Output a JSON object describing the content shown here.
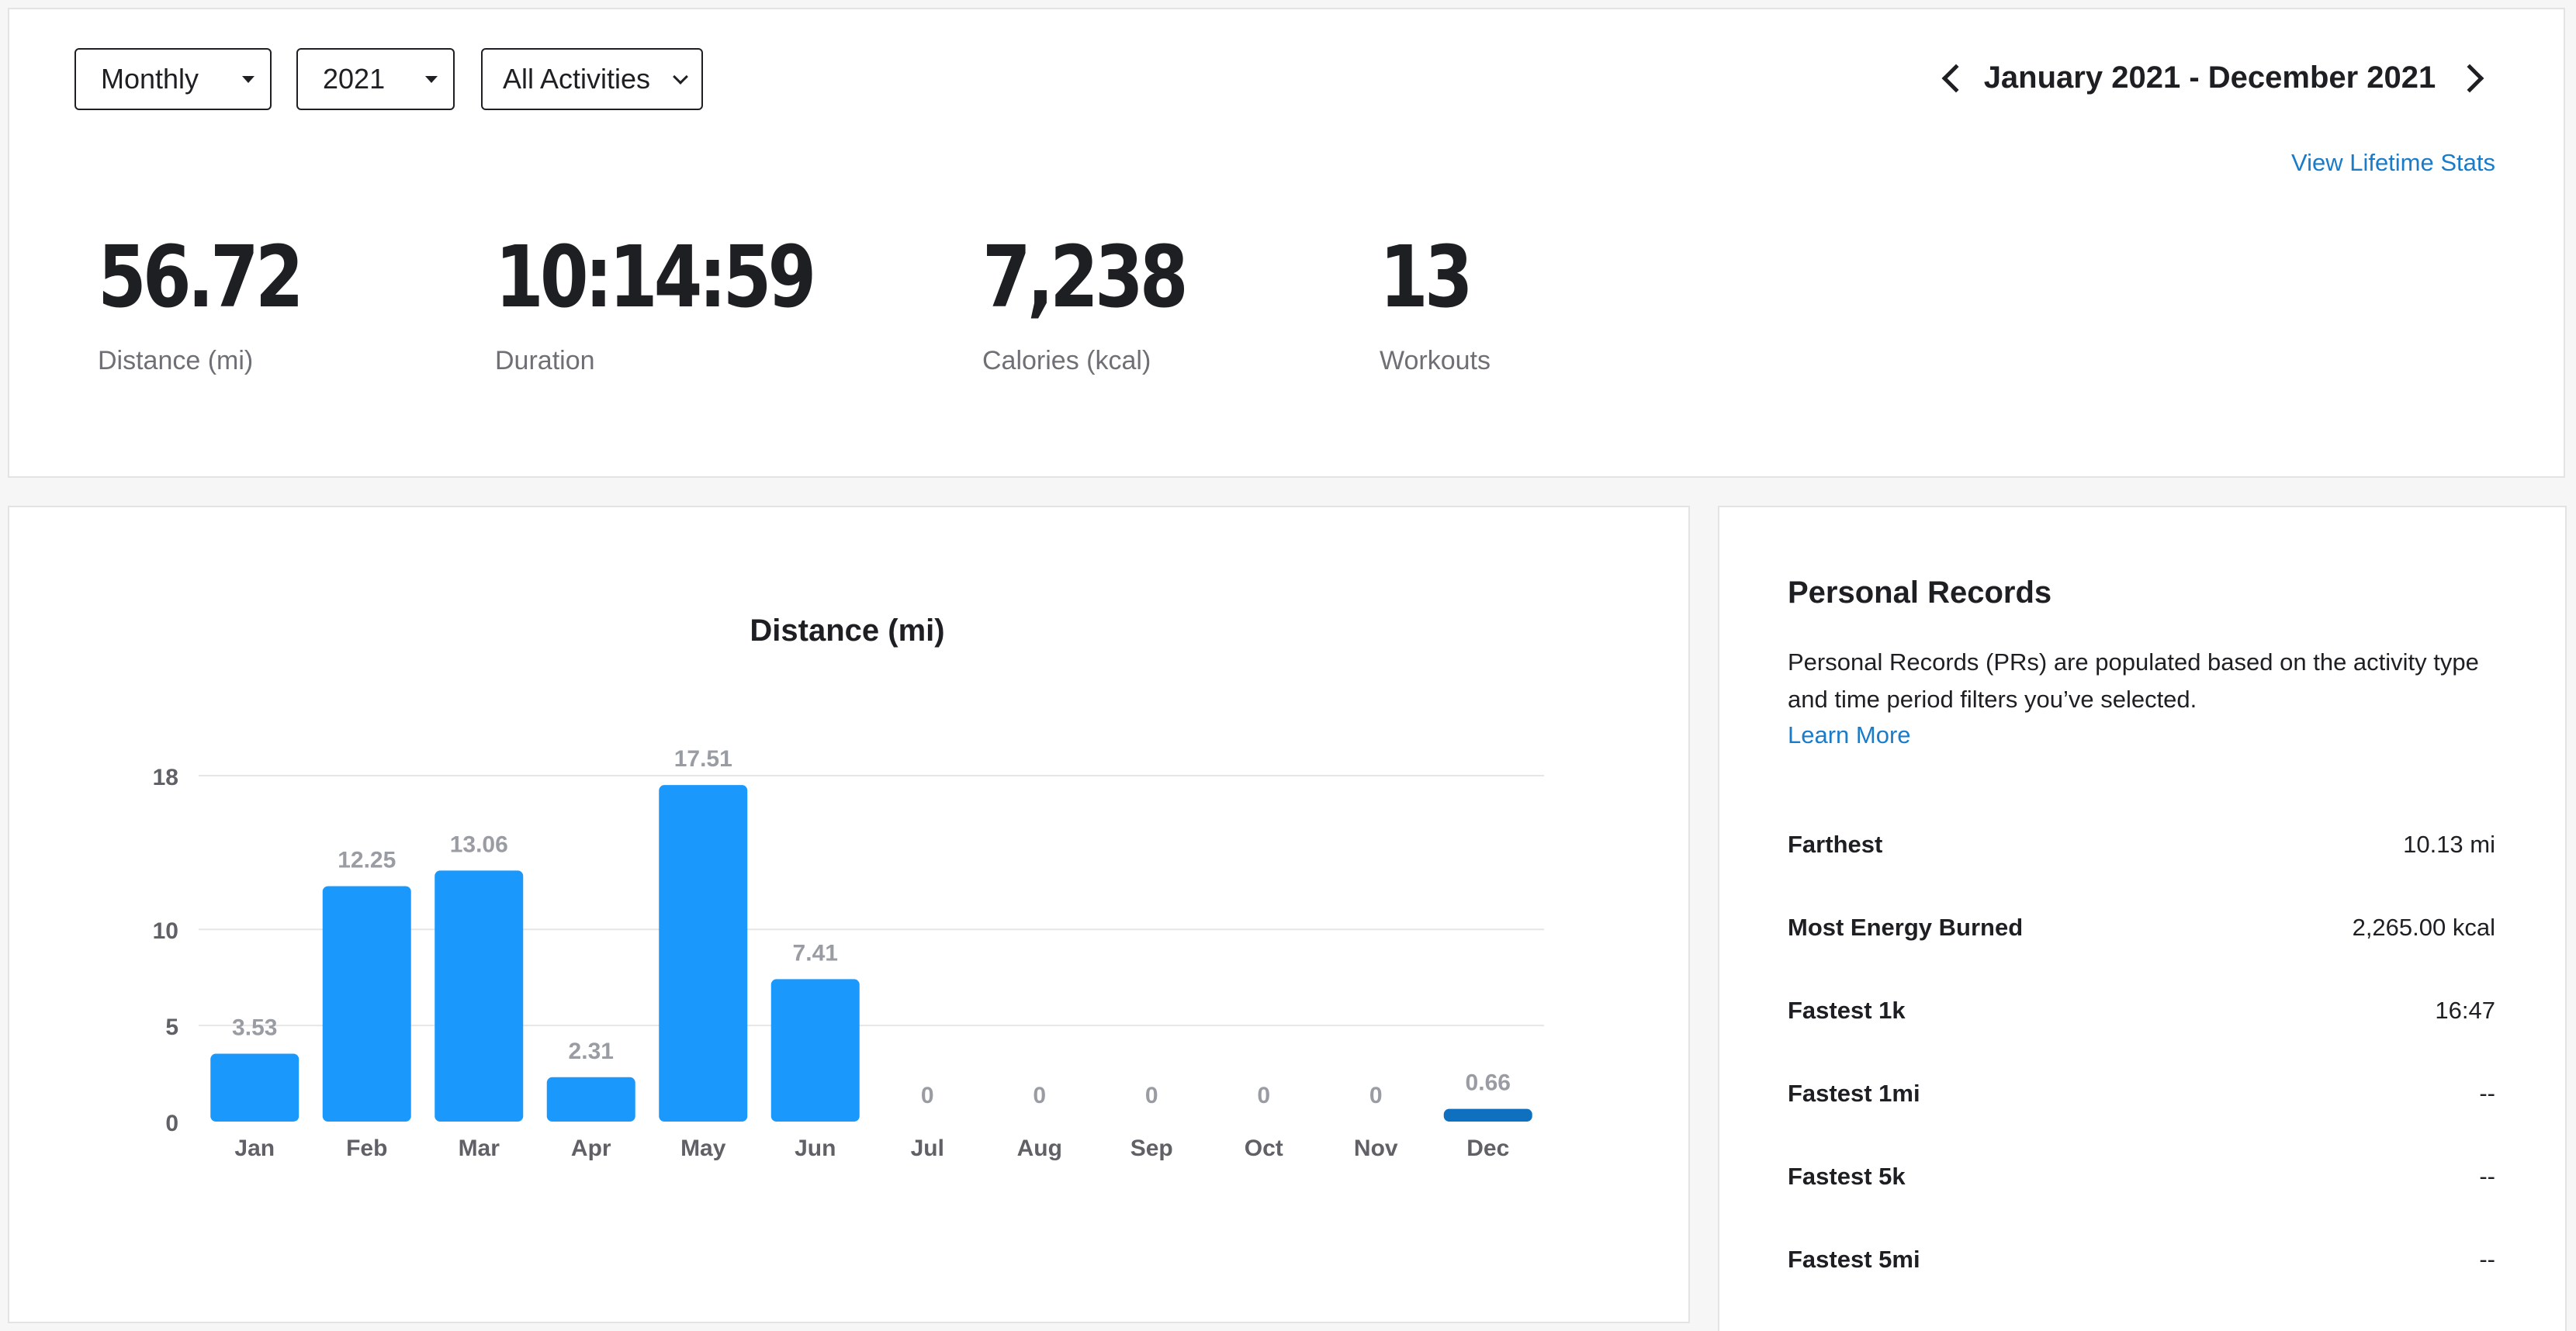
{
  "filters": {
    "period": "Monthly",
    "year": "2021",
    "activity": "All Activities"
  },
  "date_range": "January 2021 - December 2021",
  "lifetime_link": "View Lifetime Stats",
  "stats": [
    {
      "value": "56.72",
      "label": "Distance (mi)"
    },
    {
      "value": "10:14:59",
      "label": "Duration"
    },
    {
      "value": "7,238",
      "label": "Calories (kcal)"
    },
    {
      "value": "13",
      "label": "Workouts"
    }
  ],
  "chart_data": {
    "type": "bar",
    "title": "Distance (mi)",
    "xlabel": "",
    "ylabel": "",
    "categories": [
      "Jan",
      "Feb",
      "Mar",
      "Apr",
      "May",
      "Jun",
      "Jul",
      "Aug",
      "Sep",
      "Oct",
      "Nov",
      "Dec"
    ],
    "values": [
      3.53,
      12.25,
      13.06,
      2.31,
      17.51,
      7.41,
      0,
      0,
      0,
      0,
      0,
      0.66
    ],
    "value_labels": [
      "3.53",
      "12.25",
      "13.06",
      "2.31",
      "17.51",
      "7.41",
      "0",
      "0",
      "0",
      "0",
      "0",
      "0.66"
    ],
    "y_ticks": [
      0,
      5,
      10,
      18
    ],
    "y_tick_labels": [
      "0",
      "5",
      "10",
      "18"
    ],
    "ylim": [
      0,
      18
    ],
    "grid": true,
    "colors": {
      "bar": "#1a98fb",
      "highlight": "#0f70c0",
      "label": "#9a9ca3",
      "grid": "#e6e6e6"
    },
    "highlighted_category": "Dec"
  },
  "personal_records": {
    "title": "Personal Records",
    "description": "Personal Records (PRs) are populated based on the activity type and time period filters you’ve selected.",
    "learn_more": "Learn More",
    "rows": [
      {
        "label": "Farthest",
        "value": "10.13 mi"
      },
      {
        "label": "Most Energy Burned",
        "value": "2,265.00 kcal"
      },
      {
        "label": "Fastest 1k",
        "value": "16:47"
      },
      {
        "label": "Fastest 1mi",
        "value": "--"
      },
      {
        "label": "Fastest 5k",
        "value": "--"
      },
      {
        "label": "Fastest 5mi",
        "value": "--"
      }
    ]
  }
}
